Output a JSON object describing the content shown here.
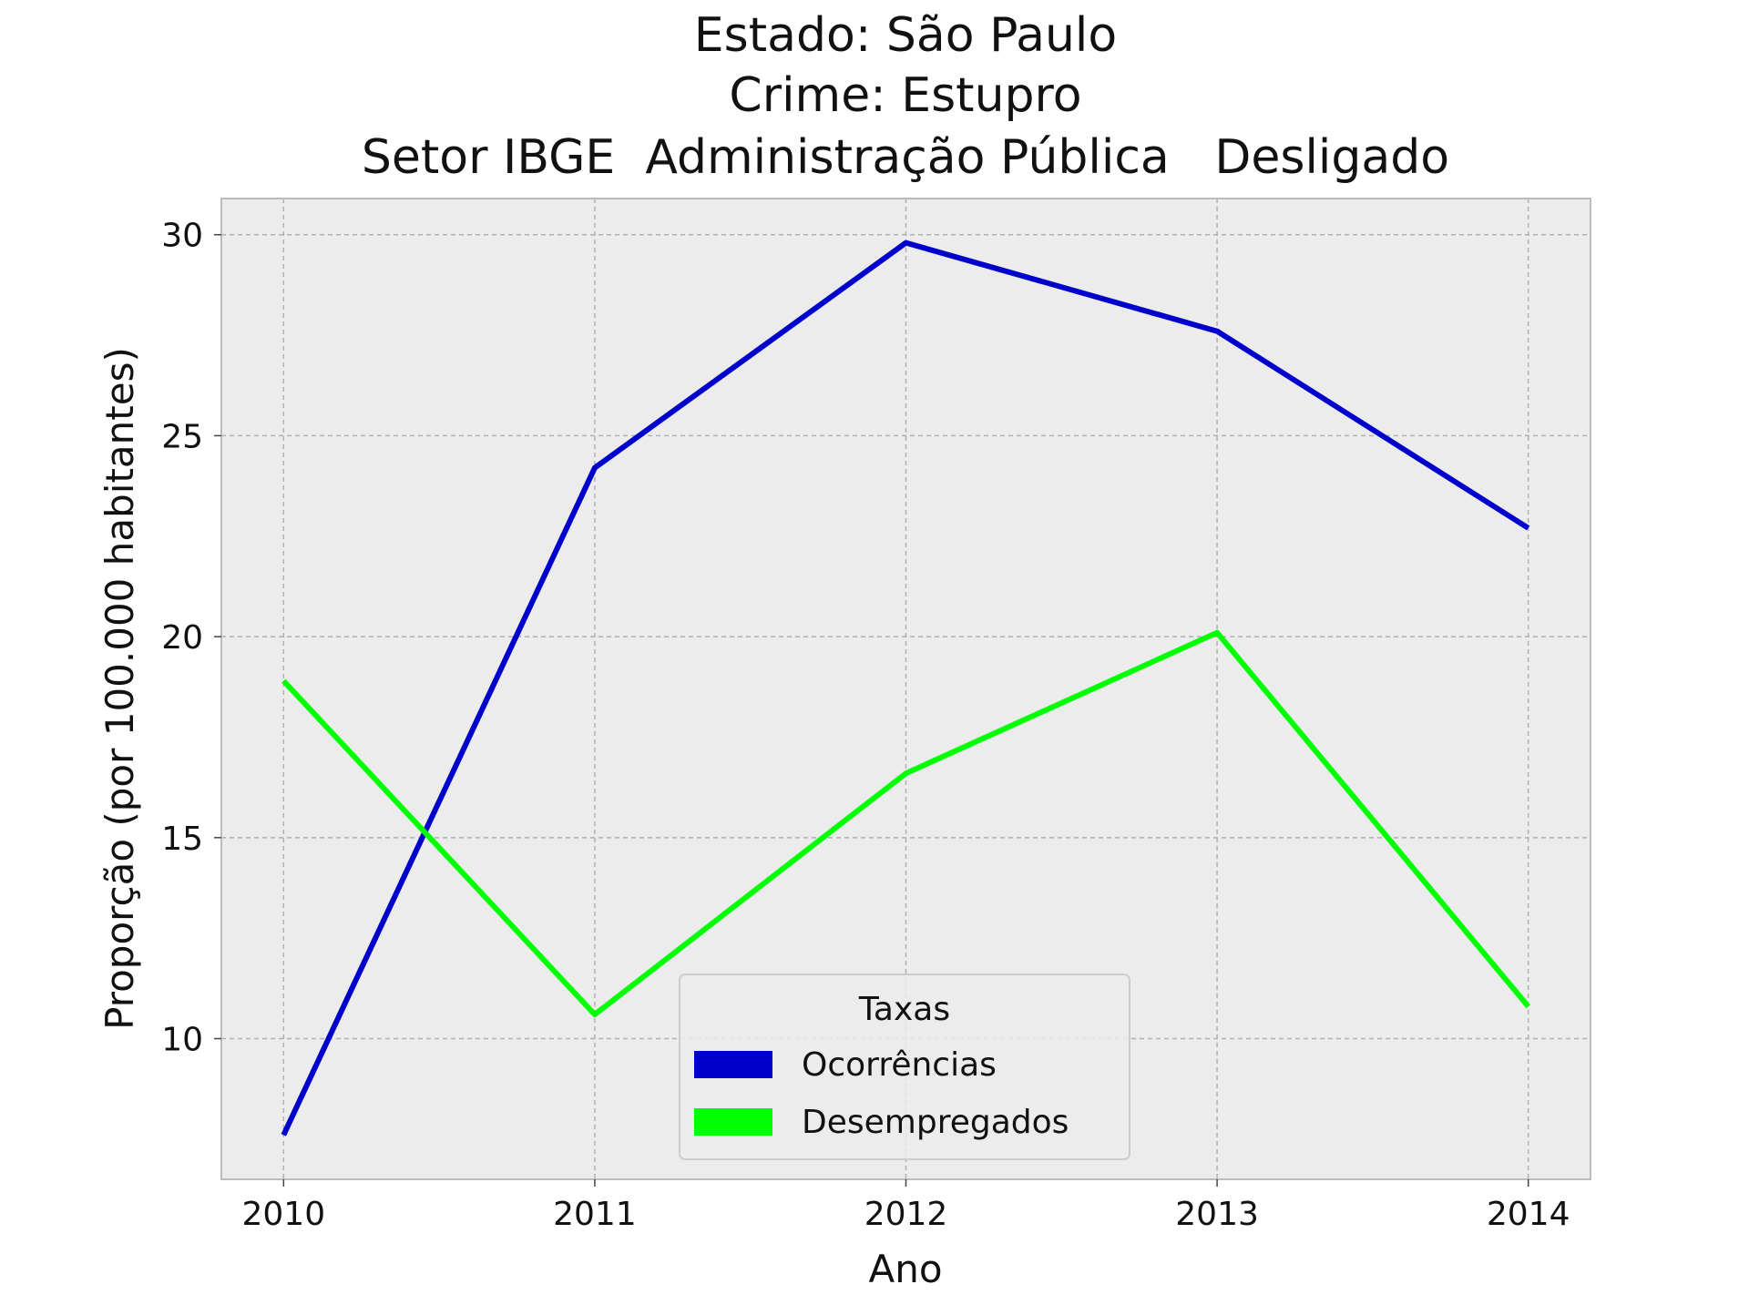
{
  "chart_data": {
    "type": "line",
    "title_lines": [
      "Estado: São Paulo",
      "Crime: Estupro",
      "Setor IBGE  Administração Pública   Desligado"
    ],
    "xlabel": "Ano",
    "ylabel": "Proporção (por 100.000 habitantes)",
    "x": [
      2010,
      2011,
      2012,
      2013,
      2014
    ],
    "xticks": [
      "2010",
      "2011",
      "2012",
      "2013",
      "2014"
    ],
    "yticks": [
      10,
      15,
      20,
      25,
      30
    ],
    "xlim": [
      2009.8,
      2014.2
    ],
    "ylim": [
      6.5,
      30.9
    ],
    "grid": true,
    "legend": {
      "title": "Taxas",
      "placement": "lower-center"
    },
    "series": [
      {
        "name": "Ocorrências",
        "color": "#0000cc",
        "values": [
          7.6,
          24.2,
          29.8,
          27.6,
          22.7
        ]
      },
      {
        "name": "Desempregados",
        "color": "#00ff00",
        "values": [
          18.9,
          10.6,
          16.6,
          20.1,
          10.8
        ]
      }
    ],
    "colors": {
      "plot_background": "#ececec",
      "grid": "#b0b0b0",
      "spine": "#bcbcbc"
    }
  }
}
